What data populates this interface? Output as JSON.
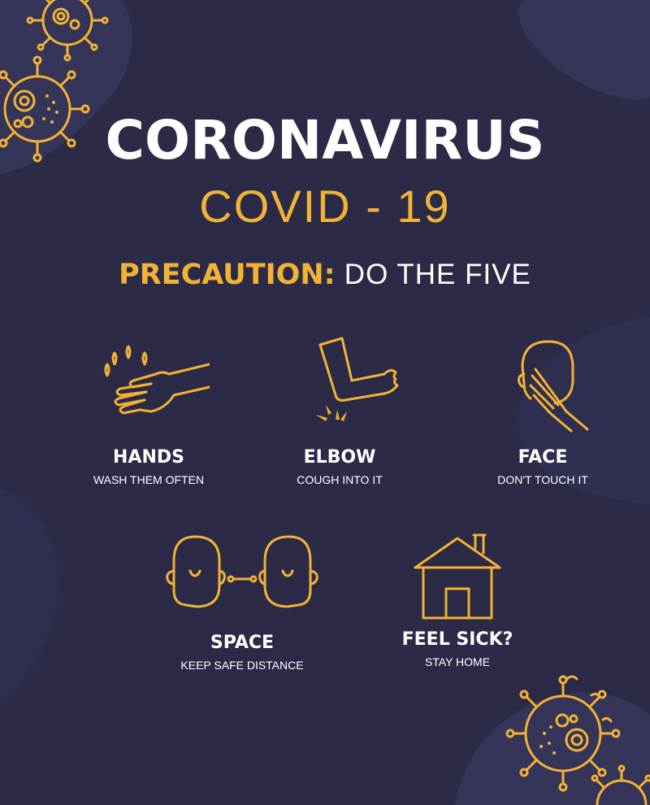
{
  "title": "CORONAVIRUS",
  "subtitle": "COVID - 19",
  "precaution": {
    "label": "PRECAUTION:",
    "text": "DO THE FIVE"
  },
  "steps": [
    {
      "title": "HANDS",
      "subtitle": "WASH THEM OFTEN",
      "icon": "hand-washing-icon"
    },
    {
      "title": "ELBOW",
      "subtitle": "COUGH INTO IT",
      "icon": "elbow-cough-icon"
    },
    {
      "title": "FACE",
      "subtitle": "DON'T TOUCH IT",
      "icon": "face-touch-icon"
    },
    {
      "title": "SPACE",
      "subtitle": "KEEP SAFE DISTANCE",
      "icon": "social-distance-icon"
    },
    {
      "title": "FEEL SICK?",
      "subtitle": "STAY HOME",
      "icon": "house-icon"
    }
  ],
  "colors": {
    "background": "#2b2b48",
    "accent": "#f2b232",
    "blob": "#35355a",
    "text": "#ffffff"
  }
}
